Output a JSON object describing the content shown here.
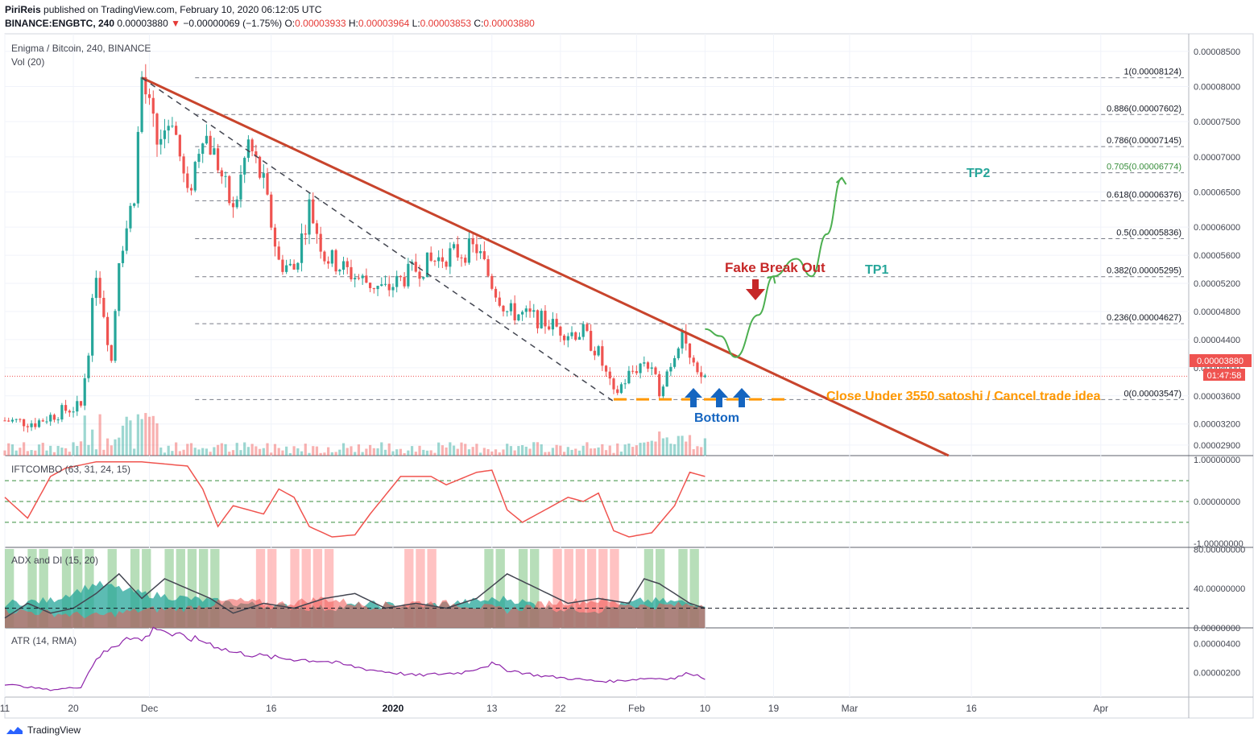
{
  "header": {
    "publisher": "PiriReis",
    "published_text": "published on TradingView.com, February 10, 2020 06:12:05 UTC",
    "symbol": "BINANCE:ENGBTC, 240",
    "last": "0.00003880",
    "change": "−0.00000069 (−1.75%)",
    "o_label": "O:",
    "o_value": "0.00003933",
    "h_label": "H:",
    "h_value": "0.00003964",
    "l_label": "L:",
    "l_value": "0.00003853",
    "c_label": "C:",
    "c_value": "0.00003880"
  },
  "main_pane": {
    "title": "Enigma / Bitcoin, 240, BINANCE",
    "volume_label": "Vol (20)"
  },
  "indicators": {
    "ift": "IFTCOMBO (63, 31, 24, 15)",
    "adx": "ADX and DI (15, 20)",
    "atr": "ATR (14, RMA)"
  },
  "annotations": {
    "fake_breakout": "Fake Break Out",
    "tp1": "TP1",
    "tp2": "TP2",
    "bottom": "Bottom",
    "cancel": "Close Under 3550 satoshi / Cancel trade idea"
  },
  "price_badge": {
    "price": "0.00003880",
    "countdown": "01:47:58"
  },
  "footer": {
    "brand": "TradingView"
  },
  "colors": {
    "up": "#26a69a",
    "down": "#ef5350",
    "trend": "#c8442c",
    "projection": "#4caf50",
    "cancel": "#ff9800",
    "fake": "#c62828",
    "tp": "#26a69a",
    "bottom": "#1565c0",
    "ift": "#f0544f",
    "atr": "#8e24aa"
  },
  "chart_data": [
    {
      "type": "candlestick",
      "title": "Enigma / Bitcoin, 240, BINANCE",
      "ylim": [
        2.75e-05,
        8.75e-05
      ],
      "y_ticks": [
        "0.00008500",
        "0.00008000",
        "0.00007500",
        "0.00007000",
        "0.00006500",
        "0.00006000",
        "0.00005600",
        "0.00005200",
        "0.00004800",
        "0.00004400",
        "0.00004000",
        "0.00003600",
        "0.00003200",
        "0.00002900"
      ],
      "y_tick_values": [
        8.5e-05,
        8e-05,
        7.5e-05,
        7e-05,
        6.5e-05,
        6e-05,
        5.6e-05,
        5.2e-05,
        4.8e-05,
        4.4e-05,
        4e-05,
        3.6e-05,
        3.2e-05,
        2.9e-05
      ],
      "x_ticks": [
        "11",
        "20",
        "Dec",
        "16",
        "2020",
        "13",
        "22",
        "Feb",
        "10",
        "19",
        "Mar",
        "16",
        "Apr"
      ],
      "x_tick_days": [
        0,
        9,
        19,
        35,
        51,
        64,
        73,
        83,
        92,
        101,
        111,
        127,
        144
      ],
      "fib_levels": [
        {
          "label": "1(0.00008124)",
          "value": 8.124e-05
        },
        {
          "label": "0.886(0.00007602)",
          "value": 7.602e-05
        },
        {
          "label": "0.786(0.00007145)",
          "value": 7.145e-05
        },
        {
          "label": "0.705(0.00006774)",
          "value": 6.774e-05
        },
        {
          "label": "0.618(0.00006376)",
          "value": 6.376e-05
        },
        {
          "label": "0.5(0.00005836)",
          "value": 5.836e-05
        },
        {
          "label": "0.382(0.00005295)",
          "value": 5.295e-05
        },
        {
          "label": "0.236(0.00004627)",
          "value": 4.627e-05
        },
        {
          "label": "0(0.00003547)",
          "value": 3.547e-05
        }
      ],
      "trendline": [
        {
          "day": 18,
          "price": 8.124e-05
        },
        {
          "day": 124,
          "price": 2.75e-05
        }
      ],
      "inner_trendline": [
        {
          "day": 18,
          "price": 8.124e-05
        },
        {
          "day": 80,
          "price": 3.52e-05
        }
      ],
      "close_path": [
        {
          "day": 0,
          "price": 3.25e-05
        },
        {
          "day": 4,
          "price": 3.22e-05
        },
        {
          "day": 8,
          "price": 3.4e-05
        },
        {
          "day": 10,
          "price": 3.45e-05
        },
        {
          "day": 11,
          "price": 4.3e-05
        },
        {
          "day": 12,
          "price": 5.4e-05
        },
        {
          "day": 13,
          "price": 4.8e-05
        },
        {
          "day": 14,
          "price": 4.1e-05
        },
        {
          "day": 15,
          "price": 5.6e-05
        },
        {
          "day": 16,
          "price": 6e-05
        },
        {
          "day": 17,
          "price": 6.5e-05
        },
        {
          "day": 18,
          "price": 8.12e-05
        },
        {
          "day": 20,
          "price": 7.2e-05
        },
        {
          "day": 22,
          "price": 7.6e-05
        },
        {
          "day": 24,
          "price": 6.4e-05
        },
        {
          "day": 26,
          "price": 7.4e-05
        },
        {
          "day": 28,
          "price": 6.9e-05
        },
        {
          "day": 30,
          "price": 6.2e-05
        },
        {
          "day": 32,
          "price": 7.2e-05
        },
        {
          "day": 34,
          "price": 6.6e-05
        },
        {
          "day": 36,
          "price": 5.5e-05
        },
        {
          "day": 38,
          "price": 5.4e-05
        },
        {
          "day": 40,
          "price": 6.3e-05
        },
        {
          "day": 42,
          "price": 5.6e-05
        },
        {
          "day": 46,
          "price": 5.3e-05
        },
        {
          "day": 50,
          "price": 5.1e-05
        },
        {
          "day": 54,
          "price": 5.4e-05
        },
        {
          "day": 58,
          "price": 5.6e-05
        },
        {
          "day": 62,
          "price": 5.7e-05
        },
        {
          "day": 64,
          "price": 5.2e-05
        },
        {
          "day": 66,
          "price": 4.8e-05
        },
        {
          "day": 70,
          "price": 4.7e-05
        },
        {
          "day": 74,
          "price": 4.5e-05
        },
        {
          "day": 76,
          "price": 4.5e-05
        },
        {
          "day": 78,
          "price": 4.2e-05
        },
        {
          "day": 80,
          "price": 3.6e-05
        },
        {
          "day": 82,
          "price": 3.9e-05
        },
        {
          "day": 84,
          "price": 4.1e-05
        },
        {
          "day": 86,
          "price": 3.7e-05
        },
        {
          "day": 88,
          "price": 4.2e-05
        },
        {
          "day": 89,
          "price": 4.6e-05
        },
        {
          "day": 90,
          "price": 4.1e-05
        },
        {
          "day": 91,
          "price": 3.85e-05
        },
        {
          "day": 92,
          "price": 3.88e-05
        }
      ],
      "projection": [
        {
          "day": 92,
          "price": 4.55e-05
        },
        {
          "day": 94,
          "price": 4.45e-05
        },
        {
          "day": 96,
          "price": 4.15e-05
        },
        {
          "day": 99,
          "price": 4.75e-05
        },
        {
          "day": 101,
          "price": 5.3e-05
        },
        {
          "day": 104,
          "price": 5.55e-05
        },
        {
          "day": 106,
          "price": 5.3e-05
        },
        {
          "day": 108,
          "price": 5.9e-05
        },
        {
          "day": 110,
          "price": 6.7e-05
        }
      ],
      "cancel_level": 3.55e-05
    },
    {
      "type": "line",
      "title": "IFTCOMBO (63, 31, 24, 15)",
      "ylim": [
        -1.1,
        1.1
      ],
      "y_ticks": [
        "1.00000000",
        "0.00000000",
        "-1.00000000"
      ],
      "y_tick_values": [
        1,
        0,
        -1
      ],
      "guides": [
        0.5,
        0,
        -0.5
      ],
      "series": [
        {
          "name": "IFTCOMBO",
          "x": [
            0,
            3,
            6,
            8,
            12,
            18,
            24,
            26,
            28,
            30,
            34,
            36,
            38,
            40,
            43,
            46,
            48,
            52,
            56,
            58,
            62,
            64,
            66,
            68,
            72,
            74,
            76,
            78,
            80,
            82,
            85,
            88,
            90,
            92
          ],
          "values": [
            0.1,
            -0.4,
            0.6,
            0.8,
            0.95,
            0.95,
            0.85,
            0.3,
            -0.6,
            -0.1,
            -0.3,
            0.3,
            0.1,
            -0.6,
            -0.85,
            -0.8,
            -0.3,
            0.6,
            0.6,
            0.4,
            0.7,
            0.75,
            -0.2,
            -0.5,
            -0.1,
            0.1,
            0.0,
            0.2,
            -0.7,
            -0.85,
            -0.75,
            -0.1,
            0.7,
            0.6
          ]
        }
      ]
    },
    {
      "type": "area",
      "title": "ADX and DI (15, 20)",
      "ylim": [
        0,
        82
      ],
      "y_ticks": [
        "80.00000000",
        "40.00000000",
        "0.00000000"
      ],
      "y_tick_values": [
        80,
        40,
        0
      ],
      "threshold": 20,
      "series": [
        {
          "name": "ADX",
          "x": [
            0,
            3,
            6,
            9,
            12,
            15,
            18,
            21,
            24,
            27,
            30,
            34,
            38,
            42,
            46,
            50,
            54,
            58,
            62,
            66,
            70,
            74,
            78,
            82,
            84,
            86,
            88,
            90,
            92
          ],
          "values": [
            10,
            25,
            15,
            20,
            35,
            55,
            30,
            50,
            40,
            30,
            15,
            25,
            20,
            30,
            35,
            20,
            25,
            20,
            30,
            55,
            40,
            25,
            30,
            25,
            50,
            45,
            35,
            25,
            20
          ]
        },
        {
          "name": "DI+",
          "x": [
            0,
            6,
            12,
            18,
            24,
            30,
            36,
            42,
            48,
            54,
            60,
            66,
            72,
            78,
            84,
            92
          ],
          "values": [
            25,
            28,
            45,
            35,
            30,
            25,
            22,
            20,
            24,
            22,
            26,
            30,
            20,
            18,
            28,
            25
          ]
        },
        {
          "name": "DI-",
          "x": [
            0,
            6,
            12,
            18,
            24,
            30,
            36,
            42,
            48,
            54,
            60,
            66,
            72,
            78,
            84,
            92
          ],
          "values": [
            18,
            15,
            12,
            18,
            20,
            28,
            24,
            30,
            22,
            26,
            24,
            18,
            26,
            28,
            22,
            24
          ]
        }
      ]
    },
    {
      "type": "line",
      "title": "ATR (14, RMA)",
      "ylim": [
        3e-07,
        5.1e-06
      ],
      "y_ticks": [
        "0.00000400",
        "0.00000200"
      ],
      "y_tick_values": [
        4e-06,
        2e-06
      ],
      "series": [
        {
          "name": "ATR",
          "x": [
            0,
            6,
            10,
            12,
            15,
            16,
            18,
            20,
            22,
            26,
            30,
            36,
            42,
            48,
            54,
            60,
            64,
            66,
            70,
            74,
            78,
            80,
            84,
            88,
            90,
            92
          ],
          "values": [
            1.2e-06,
            8e-07,
            1e-06,
            3e-06,
            4e-06,
            4.6e-06,
            4.2e-06,
            5.2e-06,
            4.6e-06,
            4.2e-06,
            3.4e-06,
            3e-06,
            2.8e-06,
            2.2e-06,
            1.8e-06,
            2e-06,
            2.6e-06,
            2.2e-06,
            1.8e-06,
            1.6e-06,
            1.4e-06,
            1.4e-06,
            1.6e-06,
            1.6e-06,
            2e-06,
            1.6e-06
          ]
        }
      ]
    }
  ]
}
